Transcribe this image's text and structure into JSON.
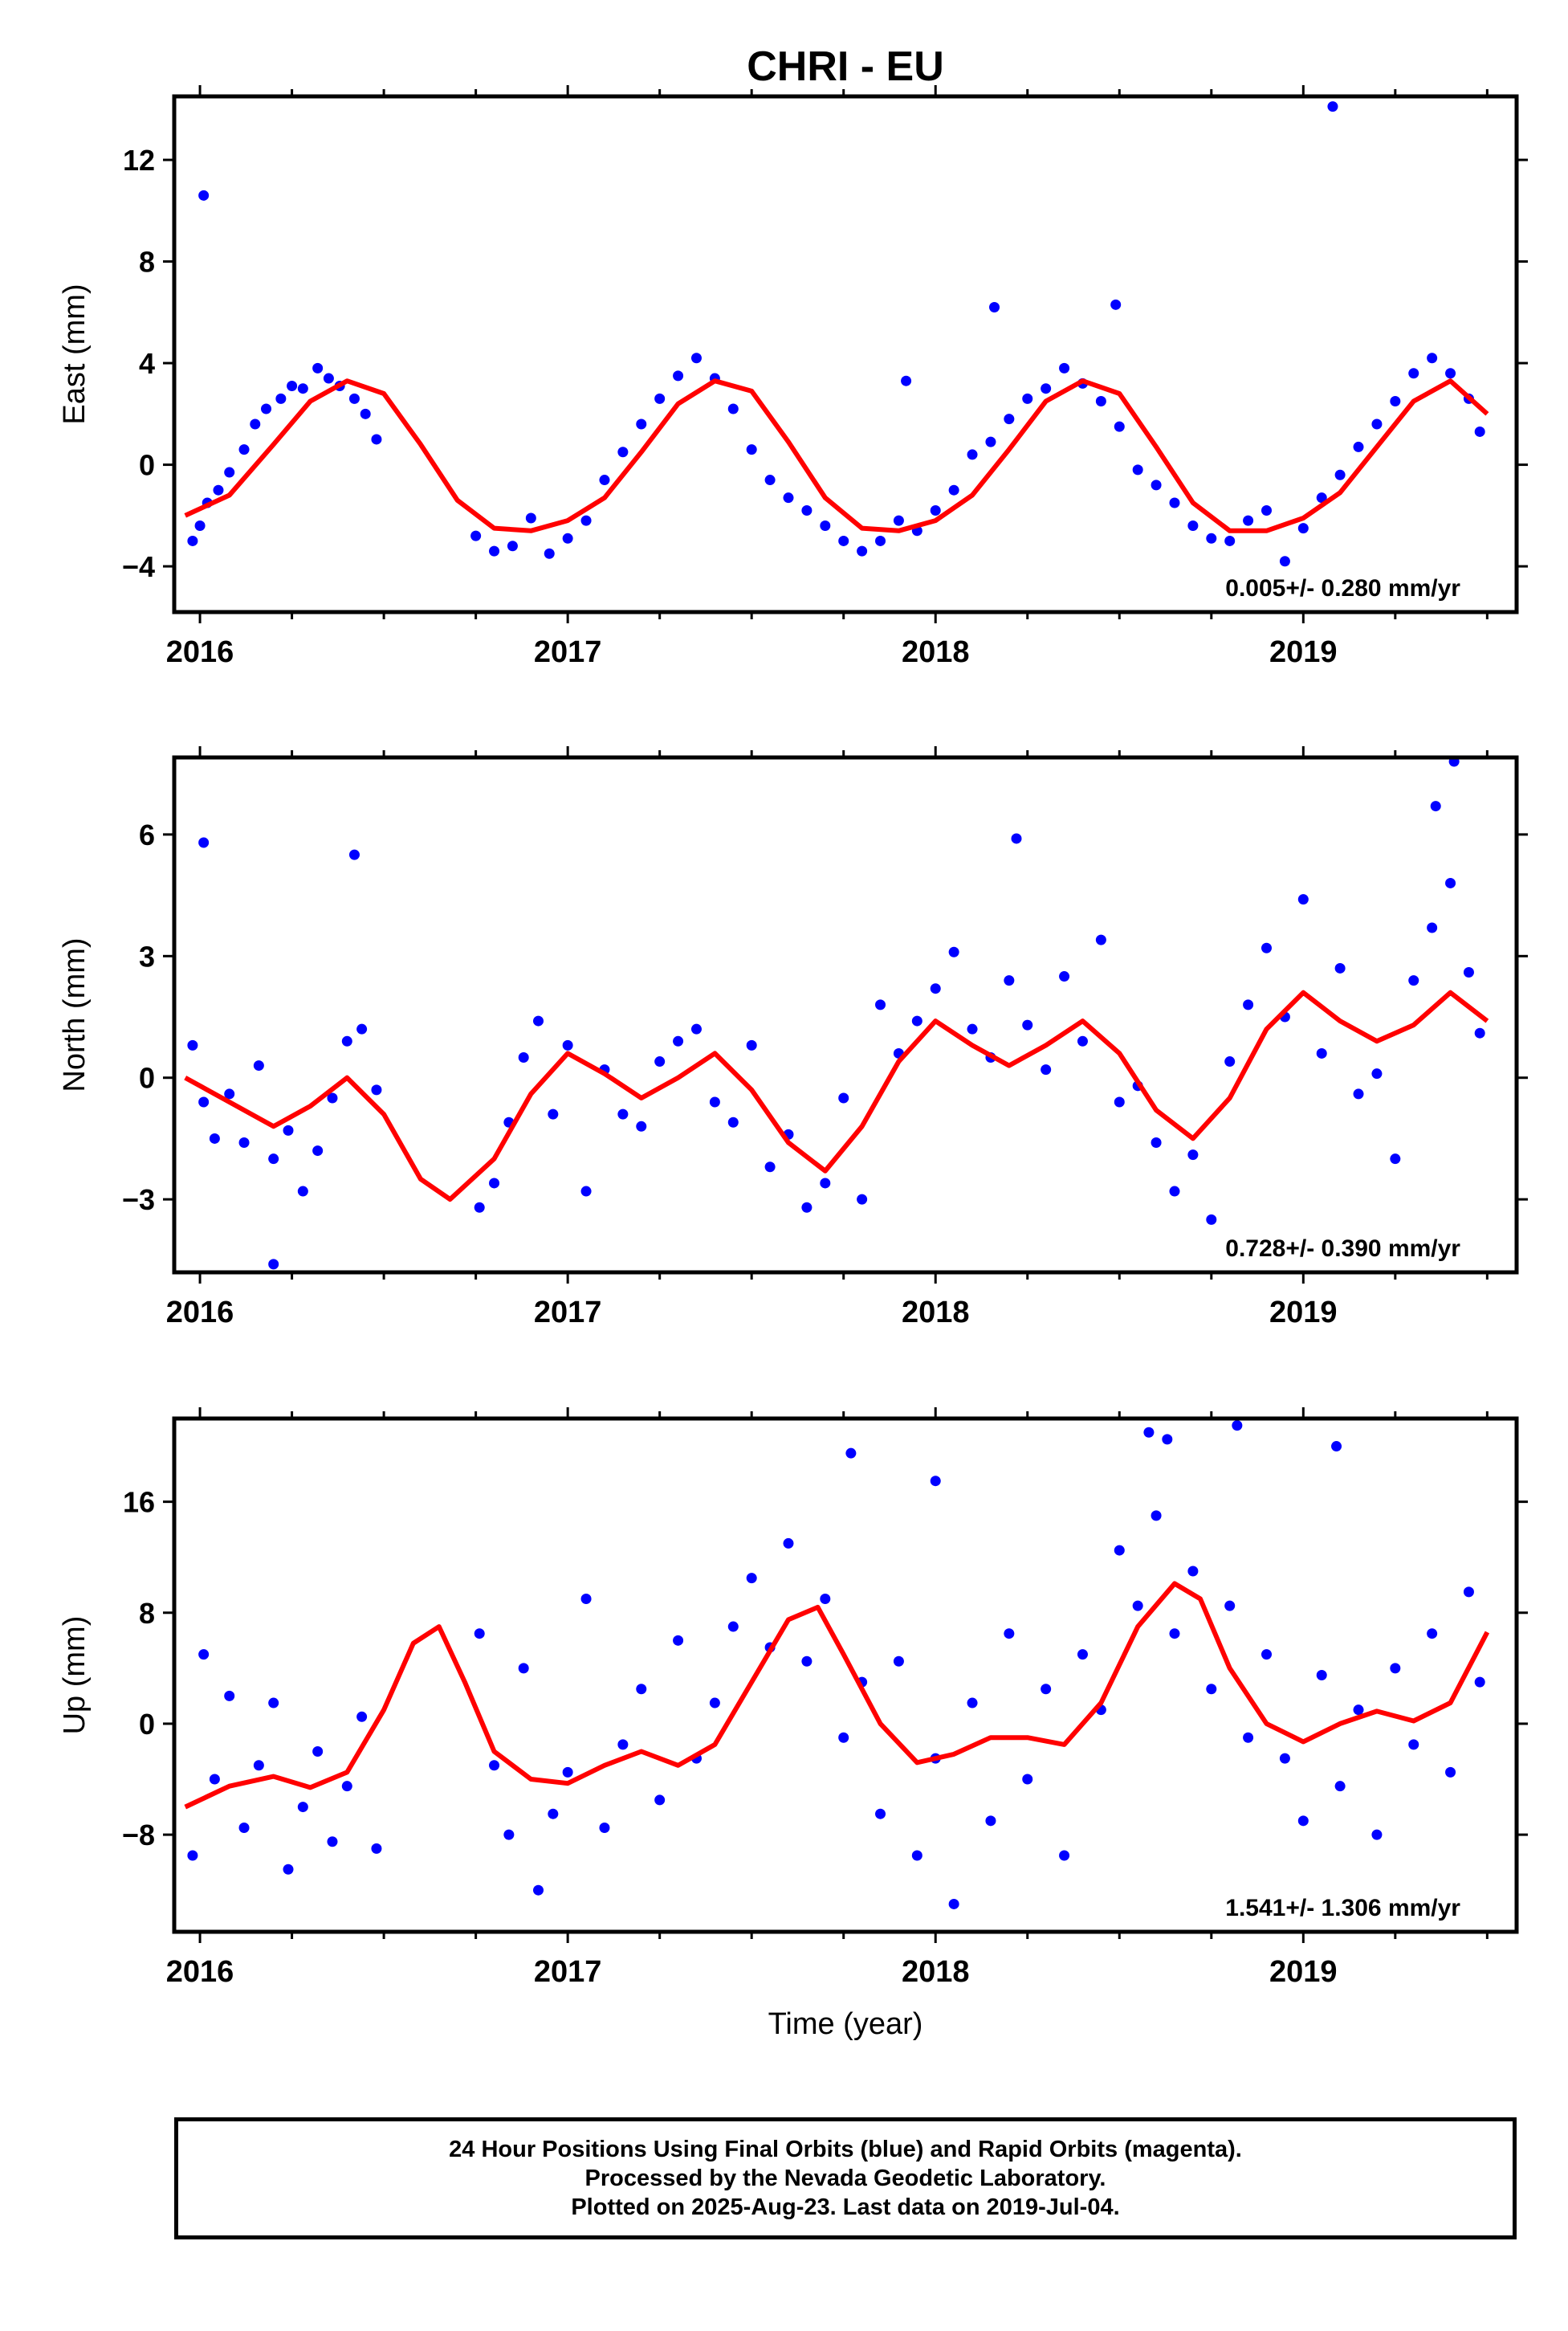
{
  "title": "CHRI - EU",
  "xlabel": "Time (year)",
  "colors": {
    "points": "#0000ff",
    "fit": "#ff0000",
    "frame": "#000000"
  },
  "footer": {
    "line1": "24 Hour Positions Using Final Orbits (blue) and Rapid Orbits (magenta).",
    "line2": "Processed by the Nevada Geodetic Laboratory.",
    "line3": "Plotted on 2025-Aug-23. Last data on 2019-Jul-04."
  },
  "chart_data": [
    {
      "type": "scatter",
      "component": "east",
      "ylabel": "East (mm)",
      "xlim": [
        2015.93,
        2019.58
      ],
      "ylim": [
        -5.8,
        14.5
      ],
      "yticks": [
        -4,
        0,
        4,
        8,
        12
      ],
      "ytick_labels": [
        "−4",
        "0",
        "4",
        "8",
        "12"
      ],
      "xticks": [
        2016,
        2017,
        2018,
        2019
      ],
      "xtick_labels": [
        "2016",
        "2017",
        "2018",
        "2019"
      ],
      "rate_text": "0.005+/- 0.280 mm/yr",
      "fit": {
        "x": [
          2015.96,
          2016.08,
          2016.2,
          2016.3,
          2016.4,
          2016.5,
          2016.6,
          2016.7,
          2016.8,
          2016.9,
          2017.0,
          2017.1,
          2017.2,
          2017.3,
          2017.4,
          2017.5,
          2017.6,
          2017.7,
          2017.8,
          2017.9,
          2018.0,
          2018.1,
          2018.2,
          2018.3,
          2018.4,
          2018.5,
          2018.6,
          2018.7,
          2018.8,
          2018.9,
          2019.0,
          2019.1,
          2019.2,
          2019.3,
          2019.4,
          2019.5
        ],
        "y": [
          -2.0,
          -1.2,
          0.8,
          2.5,
          3.3,
          2.8,
          0.8,
          -1.4,
          -2.5,
          -2.6,
          -2.2,
          -1.3,
          0.5,
          2.4,
          3.3,
          2.9,
          0.9,
          -1.3,
          -2.5,
          -2.6,
          -2.2,
          -1.2,
          0.6,
          2.5,
          3.3,
          2.8,
          0.7,
          -1.5,
          -2.6,
          -2.6,
          -2.1,
          -1.1,
          0.7,
          2.5,
          3.3,
          2.0
        ]
      },
      "points": {
        "x": [
          2015.98,
          2016.0,
          2016.02,
          2016.05,
          2016.08,
          2016.12,
          2016.15,
          2016.18,
          2016.22,
          2016.25,
          2016.28,
          2016.32,
          2016.35,
          2016.38,
          2016.42,
          2016.45,
          2016.48,
          2016.75,
          2016.8,
          2016.85,
          2016.9,
          2016.95,
          2017.0,
          2017.05,
          2017.1,
          2017.15,
          2017.2,
          2017.25,
          2017.3,
          2017.35,
          2017.4,
          2017.45,
          2017.5,
          2017.55,
          2017.6,
          2017.65,
          2017.7,
          2017.75,
          2017.8,
          2017.85,
          2017.9,
          2017.95,
          2018.0,
          2018.05,
          2018.1,
          2018.15,
          2018.2,
          2018.25,
          2018.3,
          2018.35,
          2018.4,
          2018.45,
          2018.5,
          2018.55,
          2018.6,
          2018.65,
          2018.7,
          2018.75,
          2018.8,
          2018.85,
          2018.9,
          2018.95,
          2019.0,
          2019.05,
          2019.1,
          2019.15,
          2019.2,
          2019.25,
          2019.3,
          2019.35,
          2019.4,
          2019.45,
          2019.48,
          2016.01,
          2019.08,
          2018.16,
          2018.49,
          2017.92
        ],
        "y": [
          -3.0,
          -2.4,
          -1.5,
          -1.0,
          -0.3,
          0.6,
          1.6,
          2.2,
          2.6,
          3.1,
          3.0,
          3.8,
          3.4,
          3.1,
          2.6,
          2.0,
          1.0,
          -2.8,
          -3.4,
          -3.2,
          -2.1,
          -3.5,
          -2.9,
          -2.2,
          -0.6,
          0.5,
          1.6,
          2.6,
          3.5,
          4.2,
          3.4,
          2.2,
          0.6,
          -0.6,
          -1.3,
          -1.8,
          -2.4,
          -3.0,
          -3.4,
          -3.0,
          -2.2,
          -2.6,
          -1.8,
          -1.0,
          0.4,
          0.9,
          1.8,
          2.6,
          3.0,
          3.8,
          3.2,
          2.5,
          1.5,
          -0.2,
          -0.8,
          -1.5,
          -2.4,
          -2.9,
          -3.0,
          -2.2,
          -1.8,
          -3.8,
          -2.5,
          -1.3,
          -0.4,
          0.7,
          1.6,
          2.5,
          3.6,
          4.2,
          3.6,
          2.6,
          1.3,
          10.6,
          14.1,
          6.2,
          6.3,
          3.3
        ]
      }
    },
    {
      "type": "scatter",
      "component": "north",
      "ylabel": "North (mm)",
      "xlim": [
        2015.93,
        2019.58
      ],
      "ylim": [
        -4.8,
        7.9
      ],
      "yticks": [
        -3,
        0,
        3,
        6
      ],
      "ytick_labels": [
        "−3",
        "0",
        "3",
        "6"
      ],
      "xticks": [
        2016,
        2017,
        2018,
        2019
      ],
      "xtick_labels": [
        "2016",
        "2017",
        "2018",
        "2019"
      ],
      "rate_text": "0.728+/- 0.390 mm/yr",
      "fit": {
        "x": [
          2015.96,
          2016.08,
          2016.2,
          2016.3,
          2016.4,
          2016.5,
          2016.6,
          2016.68,
          2016.8,
          2016.9,
          2017.0,
          2017.1,
          2017.2,
          2017.3,
          2017.4,
          2017.5,
          2017.6,
          2017.7,
          2017.8,
          2017.9,
          2018.0,
          2018.1,
          2018.2,
          2018.3,
          2018.4,
          2018.5,
          2018.6,
          2018.7,
          2018.8,
          2018.9,
          2019.0,
          2019.1,
          2019.2,
          2019.3,
          2019.4,
          2019.5
        ],
        "y": [
          0.0,
          -0.6,
          -1.2,
          -0.7,
          0.0,
          -0.9,
          -2.5,
          -3.0,
          -2.0,
          -0.4,
          0.6,
          0.1,
          -0.5,
          0.0,
          0.6,
          -0.3,
          -1.6,
          -2.3,
          -1.2,
          0.4,
          1.4,
          0.8,
          0.3,
          0.8,
          1.4,
          0.6,
          -0.8,
          -1.5,
          -0.5,
          1.2,
          2.1,
          1.4,
          0.9,
          1.3,
          2.1,
          1.4
        ]
      },
      "points": {
        "x": [
          2015.98,
          2016.01,
          2016.04,
          2016.08,
          2016.12,
          2016.16,
          2016.2,
          2016.24,
          2016.28,
          2016.32,
          2016.36,
          2016.4,
          2016.44,
          2016.48,
          2016.76,
          2016.8,
          2016.84,
          2016.88,
          2016.92,
          2016.96,
          2017.0,
          2017.05,
          2017.1,
          2017.15,
          2017.2,
          2017.25,
          2017.3,
          2017.35,
          2017.4,
          2017.45,
          2017.5,
          2017.55,
          2017.6,
          2017.65,
          2017.7,
          2017.75,
          2017.8,
          2017.85,
          2017.9,
          2017.95,
          2018.0,
          2018.05,
          2018.1,
          2018.15,
          2018.2,
          2018.25,
          2018.3,
          2018.35,
          2018.4,
          2018.45,
          2018.5,
          2018.55,
          2018.6,
          2018.65,
          2018.7,
          2018.75,
          2018.8,
          2018.85,
          2018.9,
          2018.95,
          2019.0,
          2019.05,
          2019.1,
          2019.15,
          2019.2,
          2019.25,
          2019.3,
          2019.35,
          2019.4,
          2019.45,
          2019.48,
          2016.01,
          2016.42,
          2018.22,
          2019.36,
          2019.41,
          2016.2
        ],
        "y": [
          0.8,
          -0.6,
          -1.5,
          -0.4,
          -1.6,
          0.3,
          -2.0,
          -1.3,
          -2.8,
          -1.8,
          -0.5,
          0.9,
          1.2,
          -0.3,
          -3.2,
          -2.6,
          -1.1,
          0.5,
          1.4,
          -0.9,
          0.8,
          -2.8,
          0.2,
          -0.9,
          -1.2,
          0.4,
          0.9,
          1.2,
          -0.6,
          -1.1,
          0.8,
          -2.2,
          -1.4,
          -3.2,
          -2.6,
          -0.5,
          -3.0,
          1.8,
          0.6,
          1.4,
          2.2,
          3.1,
          1.2,
          0.5,
          2.4,
          1.3,
          0.2,
          2.5,
          0.9,
          3.4,
          -0.6,
          -0.2,
          -1.6,
          -2.8,
          -1.9,
          -3.5,
          0.4,
          1.8,
          3.2,
          1.5,
          4.4,
          0.6,
          2.7,
          -0.4,
          0.1,
          -2.0,
          2.4,
          3.7,
          4.8,
          2.6,
          1.1,
          5.8,
          5.5,
          5.9,
          6.7,
          7.8,
          -4.6
        ]
      }
    },
    {
      "type": "scatter",
      "component": "up",
      "ylabel": "Up (mm)",
      "xlim": [
        2015.93,
        2019.58
      ],
      "ylim": [
        -15,
        22
      ],
      "yticks": [
        -8,
        0,
        8,
        16
      ],
      "ytick_labels": [
        "−8",
        "0",
        "8",
        "16"
      ],
      "xticks": [
        2016,
        2017,
        2018,
        2019
      ],
      "xtick_labels": [
        "2016",
        "2017",
        "2018",
        "2019"
      ],
      "rate_text": "1.541+/- 1.306 mm/yr",
      "fit": {
        "x": [
          2015.96,
          2016.08,
          2016.2,
          2016.3,
          2016.4,
          2016.5,
          2016.58,
          2016.65,
          2016.72,
          2016.8,
          2016.9,
          2017.0,
          2017.1,
          2017.2,
          2017.3,
          2017.4,
          2017.5,
          2017.6,
          2017.68,
          2017.75,
          2017.85,
          2017.95,
          2018.05,
          2018.15,
          2018.25,
          2018.35,
          2018.45,
          2018.55,
          2018.65,
          2018.72,
          2018.8,
          2018.9,
          2019.0,
          2019.1,
          2019.2,
          2019.3,
          2019.4,
          2019.5
        ],
        "y": [
          -6.0,
          -4.5,
          -3.8,
          -4.6,
          -3.5,
          1.0,
          5.8,
          7.0,
          3.0,
          -2.0,
          -4.0,
          -4.3,
          -3.0,
          -2.0,
          -3.0,
          -1.5,
          3.0,
          7.5,
          8.4,
          5.0,
          0.0,
          -2.8,
          -2.2,
          -1.0,
          -1.0,
          -1.5,
          1.5,
          7.0,
          10.1,
          9.0,
          4.0,
          0.0,
          -1.3,
          0.0,
          0.9,
          0.2,
          1.5,
          6.6
        ]
      },
      "points": {
        "x": [
          2015.98,
          2016.01,
          2016.04,
          2016.08,
          2016.12,
          2016.16,
          2016.2,
          2016.24,
          2016.28,
          2016.32,
          2016.36,
          2016.4,
          2016.44,
          2016.48,
          2016.76,
          2016.8,
          2016.84,
          2016.88,
          2016.92,
          2016.96,
          2017.0,
          2017.05,
          2017.1,
          2017.15,
          2017.2,
          2017.25,
          2017.3,
          2017.35,
          2017.4,
          2017.45,
          2017.5,
          2017.55,
          2017.6,
          2017.65,
          2017.7,
          2017.75,
          2017.8,
          2017.85,
          2017.9,
          2017.95,
          2018.0,
          2018.05,
          2018.1,
          2018.15,
          2018.2,
          2018.25,
          2018.3,
          2018.35,
          2018.4,
          2018.45,
          2018.5,
          2018.55,
          2018.6,
          2018.65,
          2018.7,
          2018.75,
          2018.8,
          2018.85,
          2018.9,
          2018.95,
          2019.0,
          2019.05,
          2019.1,
          2019.15,
          2019.2,
          2019.25,
          2019.3,
          2019.35,
          2019.4,
          2019.45,
          2019.48,
          2018.58,
          2018.63,
          2018.82,
          2019.09,
          2017.77,
          2018.0
        ],
        "y": [
          -9.5,
          5.0,
          -4.0,
          2.0,
          -7.5,
          -3.0,
          1.5,
          -10.5,
          -6.0,
          -2.0,
          -8.5,
          -4.5,
          0.5,
          -9.0,
          6.5,
          -3.0,
          -8.0,
          4.0,
          -12.0,
          -6.5,
          -3.5,
          9.0,
          -7.5,
          -1.5,
          2.5,
          -5.5,
          6.0,
          -2.5,
          1.5,
          7.0,
          10.5,
          5.5,
          13.0,
          4.5,
          9.0,
          -1.0,
          3.0,
          -6.5,
          4.5,
          -9.5,
          -2.5,
          -13.0,
          1.5,
          -7.0,
          6.5,
          -4.0,
          2.5,
          -9.5,
          5.0,
          1.0,
          12.5,
          8.5,
          15.0,
          6.5,
          11.0,
          2.5,
          8.5,
          -1.0,
          5.0,
          -2.5,
          -7.0,
          3.5,
          -4.5,
          1.0,
          -8.0,
          4.0,
          -1.5,
          6.5,
          -3.5,
          9.5,
          3.0,
          21.0,
          20.5,
          21.5,
          20.0,
          19.5,
          17.5
        ]
      }
    }
  ]
}
